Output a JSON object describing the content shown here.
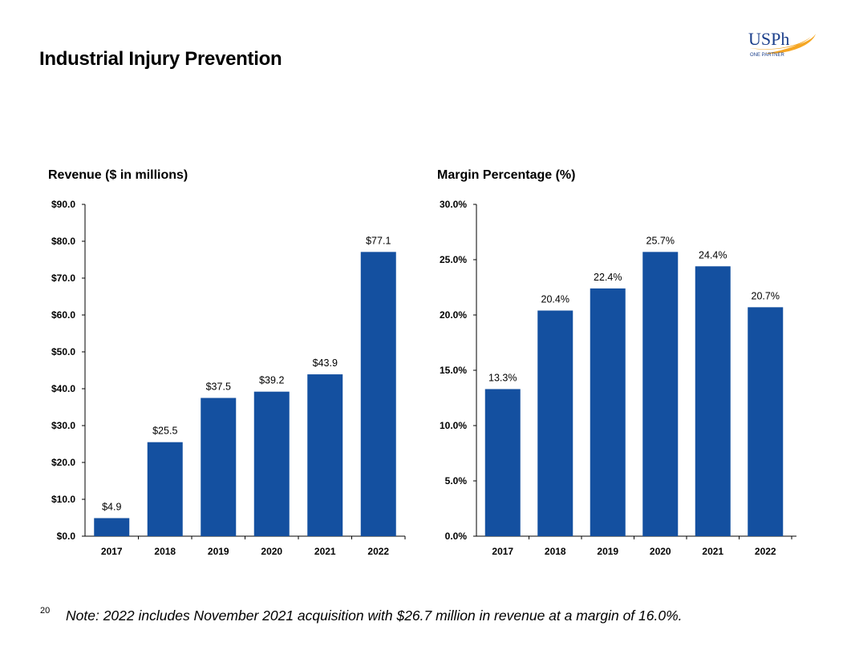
{
  "page": {
    "title": "Industrial Injury Prevention",
    "page_number": "20",
    "note": "Note: 2022 includes November 2021 acquisition with $26.7 million in revenue at a margin of 16.0%."
  },
  "logo": {
    "text": "USPh",
    "tagline": "ONE PARTNER",
    "accent_color": "#F5A623",
    "text_color": "#1B3F8B"
  },
  "colors": {
    "bar": "#1450A0",
    "axis": "#000000"
  },
  "chart_data": [
    {
      "type": "bar",
      "title": "Revenue ($ in millions)",
      "categories": [
        "2017",
        "2018",
        "2019",
        "2020",
        "2021",
        "2022"
      ],
      "values": [
        4.9,
        25.5,
        37.5,
        39.2,
        43.9,
        77.1
      ],
      "value_labels": [
        "$4.9",
        "$25.5",
        "$37.5",
        "$39.2",
        "$43.9",
        "$77.1"
      ],
      "ylim": [
        0,
        90
      ],
      "yticks": [
        0,
        10,
        20,
        30,
        40,
        50,
        60,
        70,
        80,
        90
      ],
      "ytick_labels": [
        "$0.0",
        "$10.0",
        "$20.0",
        "$30.0",
        "$40.0",
        "$50.0",
        "$60.0",
        "$70.0",
        "$80.0",
        "$90.0"
      ],
      "xlabel": "",
      "ylabel": "",
      "grid": false,
      "legend": "none"
    },
    {
      "type": "bar",
      "title": "Margin Percentage (%)",
      "categories": [
        "2017",
        "2018",
        "2019",
        "2020",
        "2021",
        "2022"
      ],
      "values": [
        13.3,
        20.4,
        22.4,
        25.7,
        24.4,
        20.7
      ],
      "value_labels": [
        "13.3%",
        "20.4%",
        "22.4%",
        "25.7%",
        "24.4%",
        "20.7%"
      ],
      "ylim": [
        0,
        30
      ],
      "yticks": [
        0,
        5,
        10,
        15,
        20,
        25,
        30
      ],
      "ytick_labels": [
        "0.0%",
        "5.0%",
        "10.0%",
        "15.0%",
        "20.0%",
        "25.0%",
        "30.0%"
      ],
      "xlabel": "",
      "ylabel": "",
      "grid": false,
      "legend": "none"
    }
  ]
}
